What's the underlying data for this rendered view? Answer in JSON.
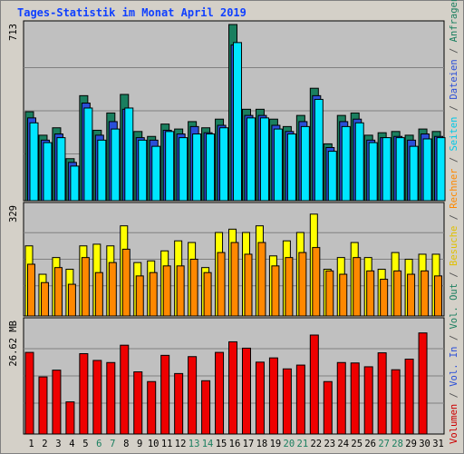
{
  "chart_data": {
    "type": "bar",
    "title": "Tages-Statistik im Monat April 2019",
    "categories": [
      "1",
      "2",
      "3",
      "4",
      "5",
      "6",
      "7",
      "8",
      "9",
      "10",
      "11",
      "12",
      "13",
      "14",
      "15",
      "16",
      "17",
      "18",
      "19",
      "20",
      "21",
      "22",
      "23",
      "24",
      "25",
      "26",
      "27",
      "28",
      "29",
      "30",
      "31"
    ],
    "weekend_days": [
      "6",
      "7",
      "13",
      "14",
      "20",
      "21",
      "27",
      "28"
    ],
    "panels": [
      {
        "id": "top",
        "max_label": "713",
        "ylim": [
          0,
          713
        ],
        "series": [
          {
            "name": "Anfragen",
            "color": "#1a7f5f",
            "values": [
              360,
              265,
              295,
              170,
              425,
              285,
              355,
              430,
              280,
              260,
              310,
              290,
              320,
              295,
              330,
              713,
              370,
              370,
              330,
              300,
              345,
              455,
              230,
              345,
              355,
              265,
              275,
              280,
              265,
              290,
              280
            ]
          },
          {
            "name": "Dateien",
            "color": "#2a4ed8",
            "values": [
              335,
              245,
              270,
              155,
              395,
              265,
              320,
              370,
              255,
              245,
              285,
              270,
              300,
              275,
              305,
              630,
              345,
              345,
              305,
              280,
              320,
              425,
              215,
              320,
              330,
              245,
              255,
              260,
              245,
              270,
              260
            ]
          },
          {
            "name": "Seiten",
            "color": "#00e5ff",
            "values": [
              315,
              235,
              255,
              140,
              375,
              245,
              290,
              375,
              245,
              220,
              280,
              255,
              270,
              270,
              295,
              640,
              335,
              335,
              290,
              270,
              300,
              410,
              200,
              300,
              315,
              235,
              255,
              255,
              220,
              250,
              255
            ]
          }
        ]
      },
      {
        "id": "middle",
        "max_label": "329",
        "ylim": [
          0,
          329
        ],
        "series": [
          {
            "name": "Besuche",
            "color": "#ffff00",
            "values": [
              210,
              125,
              175,
              140,
              210,
              215,
              210,
              270,
              160,
              165,
              195,
              225,
              220,
              145,
              250,
              260,
              250,
              270,
              180,
              225,
              250,
              305,
              140,
              175,
              220,
              175,
              140,
              190,
              170,
              185,
              185
            ]
          },
          {
            "name": "Rechner",
            "color": "#ff8800",
            "values": [
              155,
              100,
              145,
              95,
              175,
              130,
              160,
              200,
              120,
              130,
              150,
              150,
              170,
              130,
              190,
              220,
              185,
              220,
              150,
              175,
              190,
              205,
              135,
              125,
              175,
              135,
              110,
              135,
              125,
              135,
              120
            ]
          }
        ]
      },
      {
        "id": "bottom",
        "max_label": "26.62 MB",
        "ylim": [
          0,
          26.62
        ],
        "series": [
          {
            "name": "Volumen",
            "color": "#ee0000",
            "values": [
              19.3,
              13.5,
              15.1,
              7.6,
              19.0,
              17.4,
              16.9,
              21.0,
              14.7,
              12.4,
              18.6,
              14.3,
              18.3,
              12.6,
              19.3,
              21.8,
              20.3,
              17.0,
              18.0,
              15.4,
              16.3,
              23.4,
              12.4,
              16.9,
              16.8,
              15.9,
              19.2,
              15.2,
              17.7,
              23.9,
              0
            ]
          }
        ]
      }
    ],
    "right_legend": {
      "items": [
        {
          "text": "Volumen",
          "color": "#cc0000"
        },
        {
          "text": " / ",
          "color": "#555555"
        },
        {
          "text": "Vol. In",
          "color": "#2a4ed8"
        },
        {
          "text": " / ",
          "color": "#555555"
        },
        {
          "text": "Vol. Out",
          "color": "#1a7f5f"
        },
        {
          "text": " / ",
          "color": "#555555"
        },
        {
          "text": "Besuche",
          "color": "#e0c000"
        },
        {
          "text": " / ",
          "color": "#555555"
        },
        {
          "text": "Rechner",
          "color": "#ff8800"
        },
        {
          "text": " / ",
          "color": "#555555"
        },
        {
          "text": "Seiten",
          "color": "#00c8e8"
        },
        {
          "text": " / ",
          "color": "#555555"
        },
        {
          "text": "Dateien",
          "color": "#2a4ed8"
        },
        {
          "text": " / ",
          "color": "#555555"
        },
        {
          "text": "Anfragen",
          "color": "#1a7f5f"
        }
      ]
    },
    "colors": {
      "plot_bg": "#c0c0c0",
      "frame": "#000000",
      "gridline": "#808080",
      "title": "#1040ff",
      "day_label": "#000000",
      "weekend_label": "#1a7f5f"
    }
  }
}
